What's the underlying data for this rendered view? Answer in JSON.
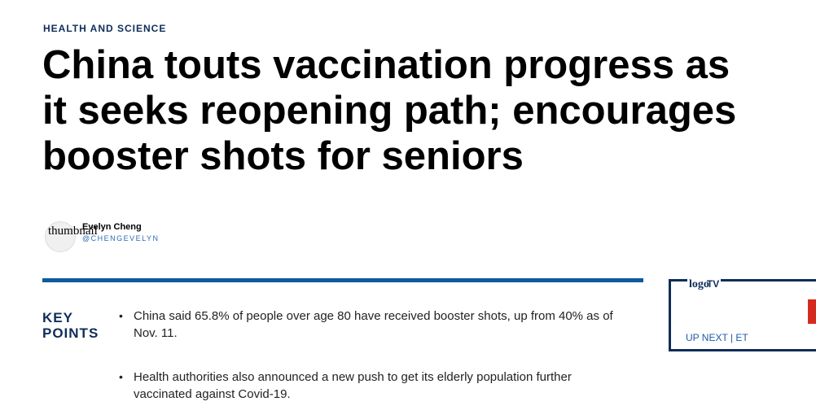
{
  "section": "HEALTH AND SCIENCE",
  "headline": {
    "line1": "China touts vaccination progress as",
    "line2": "it seeks reopening path; encourages",
    "line3": "booster shots for seniors"
  },
  "author": {
    "thumbnail_alt": "thumbnail",
    "name": "Evelyn Cheng",
    "handle": "@CHENGEVELYN"
  },
  "key_points": {
    "title_line1": "KEY",
    "title_line2": "POINTS",
    "items": [
      {
        "text": "China said 65.8% of people over age 80 have received booster shots, up from 40% as of Nov. 11."
      },
      {
        "text": "Health authorities also announced a new push to get its elderly population further vaccinated against Covid-19."
      }
    ]
  },
  "up_next": {
    "logo_alt": "logo",
    "logo_tv": "TV",
    "label": "UP NEXT | ET"
  },
  "colors": {
    "brand_navy": "#0e2d5a",
    "rule_blue": "#0e5a9c",
    "link_blue": "#2a6bb7",
    "accent_red": "#d52b1e"
  }
}
